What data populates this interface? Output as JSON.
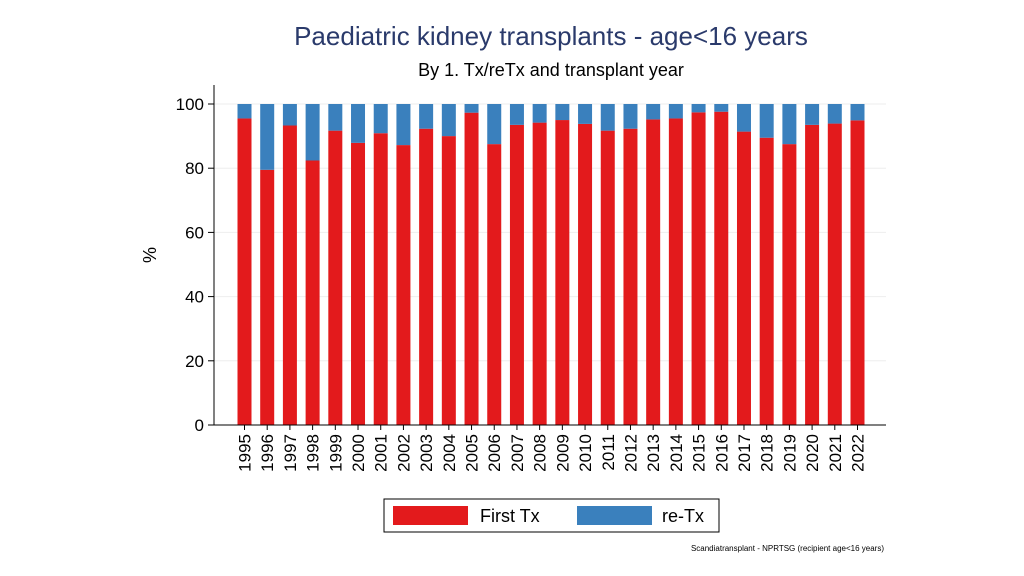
{
  "chart_data": {
    "type": "bar",
    "stacked": true,
    "title": "Paediatric kidney transplants - age<16 years",
    "subtitle": "By 1. Tx/reTx and transplant year",
    "ylabel": "%",
    "xlabel": "",
    "ylim": [
      0,
      100
    ],
    "yticks": [
      0,
      20,
      40,
      60,
      80,
      100
    ],
    "grid": true,
    "legend_position": "bottom",
    "categories": [
      "1995",
      "1996",
      "1997",
      "1998",
      "1999",
      "2000",
      "2001",
      "2002",
      "2003",
      "2004",
      "2005",
      "2006",
      "2007",
      "2008",
      "2009",
      "2010",
      "2011",
      "2012",
      "2013",
      "2014",
      "2015",
      "2016",
      "2017",
      "2018",
      "2019",
      "2020",
      "2021",
      "2022"
    ],
    "series": [
      {
        "name": "First Tx",
        "color": "#e31a1c",
        "values": [
          95.5,
          79.5,
          93.3,
          82.4,
          91.7,
          87.9,
          90.9,
          87.2,
          92.3,
          90.0,
          97.3,
          87.5,
          93.5,
          94.2,
          95.0,
          93.8,
          91.7,
          92.3,
          95.2,
          95.5,
          97.4,
          97.6,
          91.4,
          89.5,
          87.5,
          93.5,
          93.9,
          94.9
        ]
      },
      {
        "name": "re-Tx",
        "color": "#3a80bd",
        "values": [
          4.5,
          20.5,
          6.7,
          17.6,
          8.3,
          12.1,
          9.1,
          12.8,
          7.7,
          10.0,
          2.7,
          12.5,
          6.5,
          5.8,
          5.0,
          6.2,
          8.3,
          7.7,
          4.8,
          4.5,
          2.6,
          2.4,
          8.6,
          10.5,
          12.5,
          6.5,
          6.1,
          5.1
        ]
      }
    ],
    "footnote": "Scandiatransplant - NPRTSG (recipient age<16 years)"
  }
}
